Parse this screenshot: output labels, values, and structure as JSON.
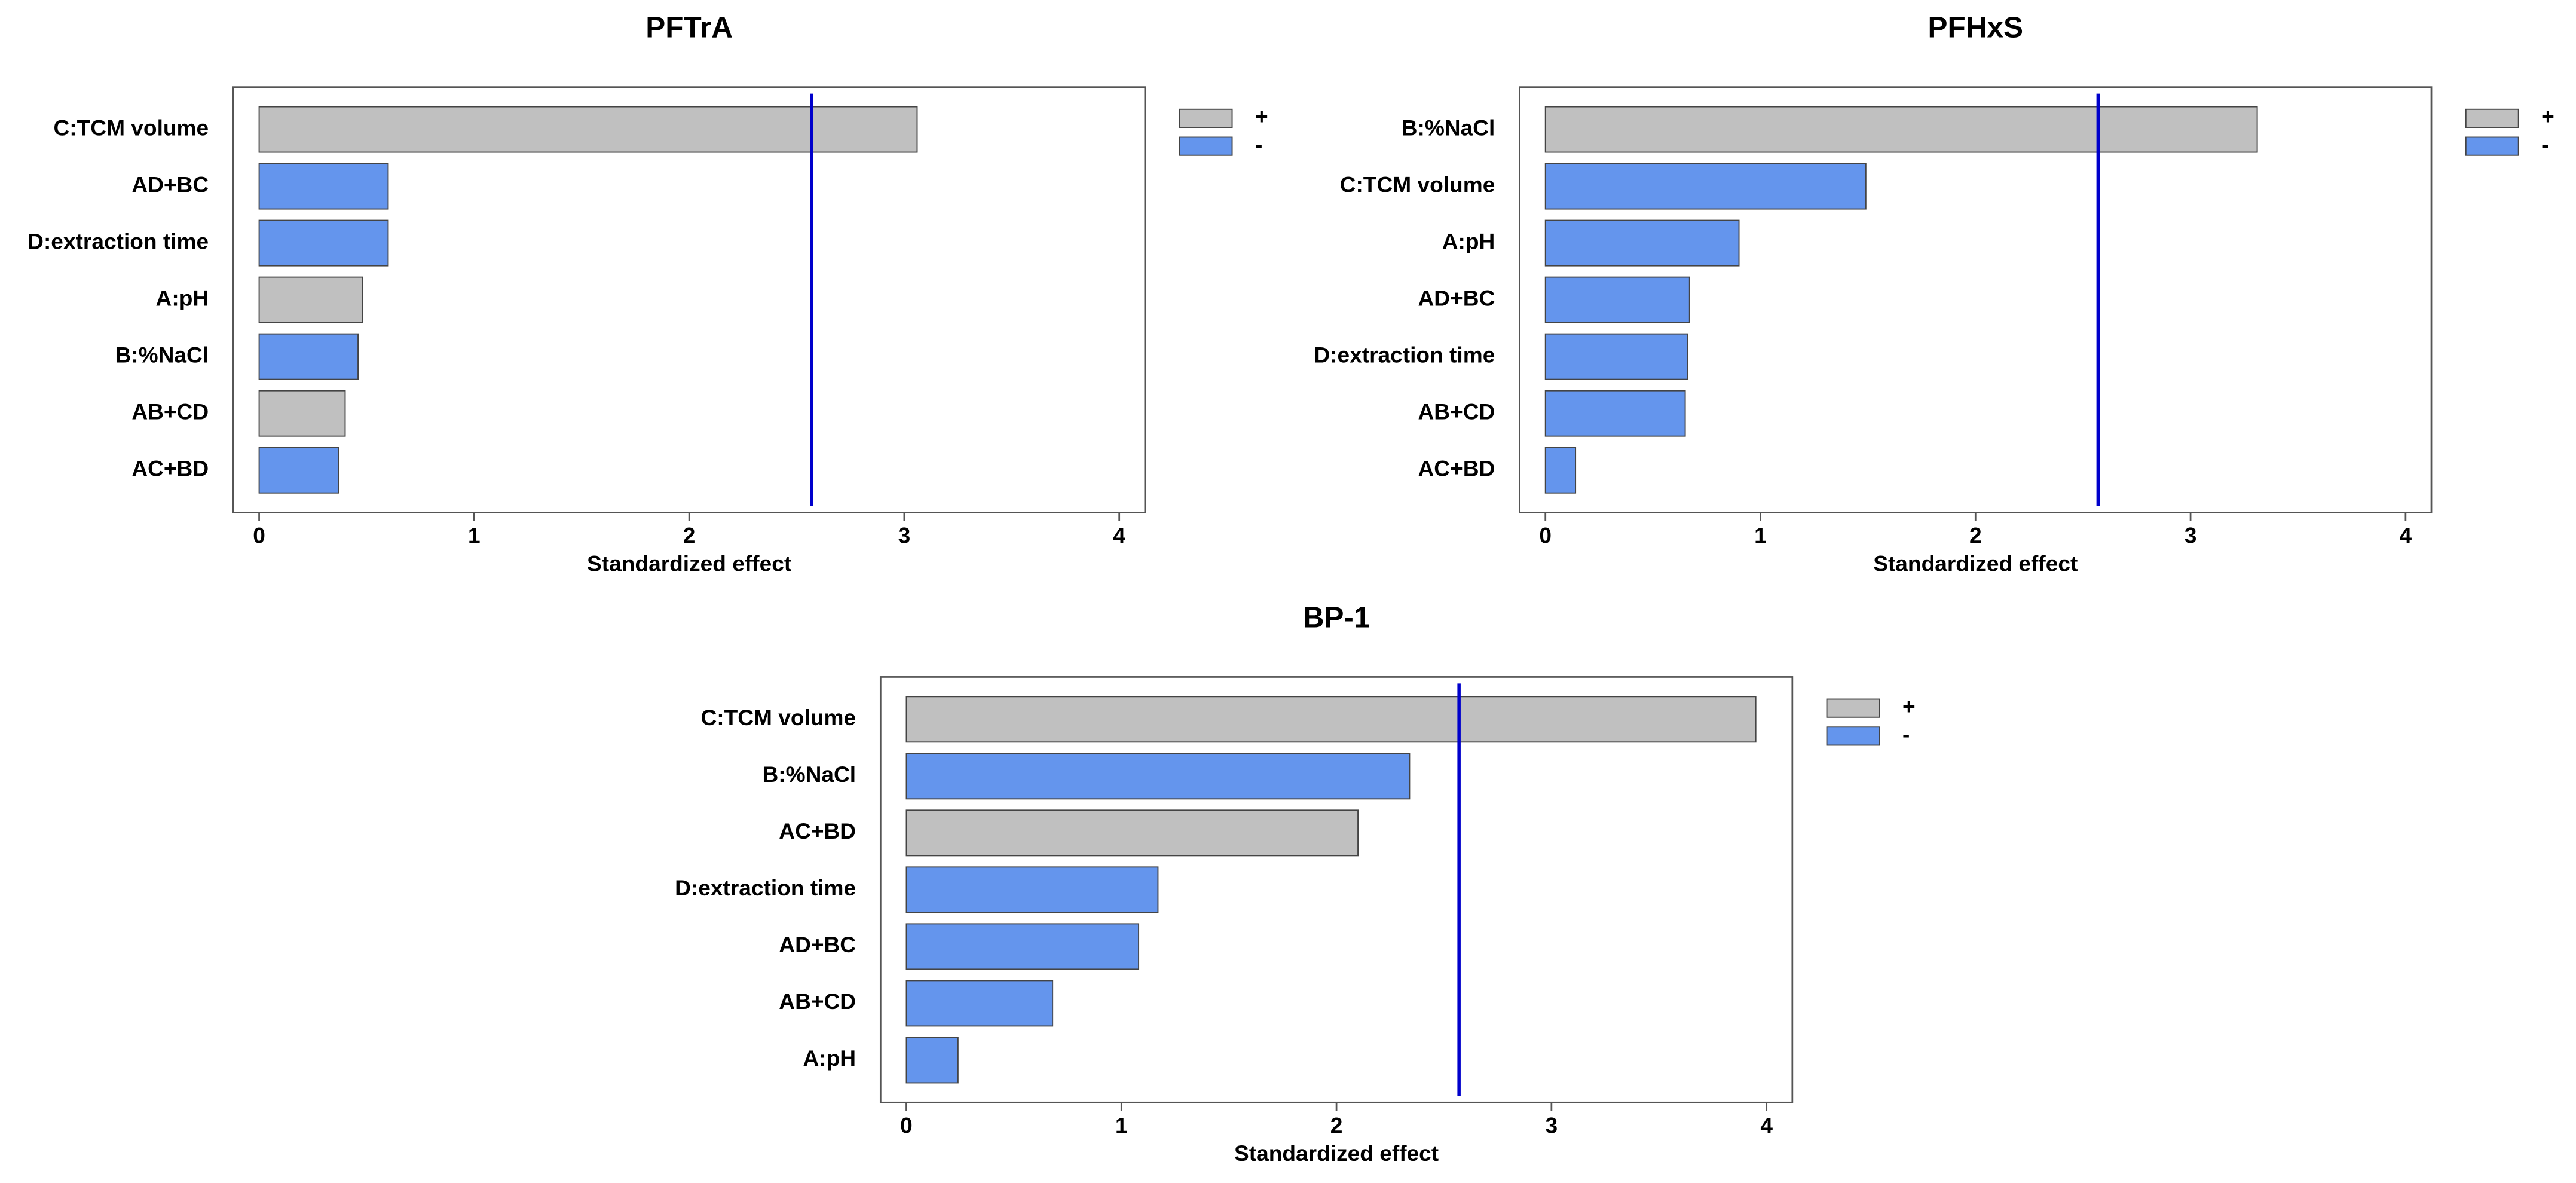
{
  "chart_data": [
    {
      "type": "bar",
      "orientation": "horizontal",
      "title": "PFTrA",
      "xlabel": "Standardized effect",
      "categories": [
        "C:TCM volume",
        "AD+BC",
        "D:extraction time",
        "A:pH",
        "B:%NaCl",
        "AB+CD",
        "AC+BD"
      ],
      "series": [
        {
          "name": "+",
          "color": "#c0c0c0",
          "values": [
            3.06,
            null,
            null,
            0.48,
            null,
            0.4,
            null
          ]
        },
        {
          "name": "-",
          "color": "#6495ed",
          "values": [
            null,
            0.6,
            0.6,
            null,
            0.46,
            null,
            0.37
          ]
        }
      ],
      "reference_line": 2.57,
      "reference_color": "#0000cc",
      "xlim": [
        -0.12,
        4.12
      ],
      "xticks": [
        0,
        1,
        2,
        3,
        4
      ]
    },
    {
      "type": "bar",
      "orientation": "horizontal",
      "title": "PFHxS",
      "xlabel": "Standardized effect",
      "categories": [
        "B:%NaCl",
        "C:TCM volume",
        "A:pH",
        "AD+BC",
        "D:extraction time",
        "AB+CD",
        "AC+BD"
      ],
      "series": [
        {
          "name": "+",
          "color": "#c0c0c0",
          "values": [
            3.31,
            null,
            null,
            null,
            null,
            null,
            null
          ]
        },
        {
          "name": "-",
          "color": "#6495ed",
          "values": [
            null,
            1.49,
            0.9,
            0.67,
            0.66,
            0.65,
            0.14
          ]
        }
      ],
      "reference_line": 2.57,
      "reference_color": "#0000cc",
      "xlim": [
        -0.12,
        4.12
      ],
      "xticks": [
        0,
        1,
        2,
        3,
        4
      ]
    },
    {
      "type": "bar",
      "orientation": "horizontal",
      "title": "BP-1",
      "xlabel": "Standardized effect",
      "categories": [
        "C:TCM volume",
        "B:%NaCl",
        "AC+BD",
        "D:extraction time",
        "AD+BC",
        "AB+CD",
        "A:pH"
      ],
      "series": [
        {
          "name": "+",
          "color": "#c0c0c0",
          "values": [
            3.95,
            null,
            2.1,
            null,
            null,
            null,
            null
          ]
        },
        {
          "name": "-",
          "color": "#6495ed",
          "values": [
            null,
            2.34,
            null,
            1.17,
            1.08,
            0.68,
            0.24
          ]
        }
      ],
      "reference_line": 2.57,
      "reference_color": "#0000cc",
      "xlim": [
        -0.12,
        4.12
      ],
      "xticks": [
        0,
        1,
        2,
        3,
        4
      ]
    }
  ]
}
